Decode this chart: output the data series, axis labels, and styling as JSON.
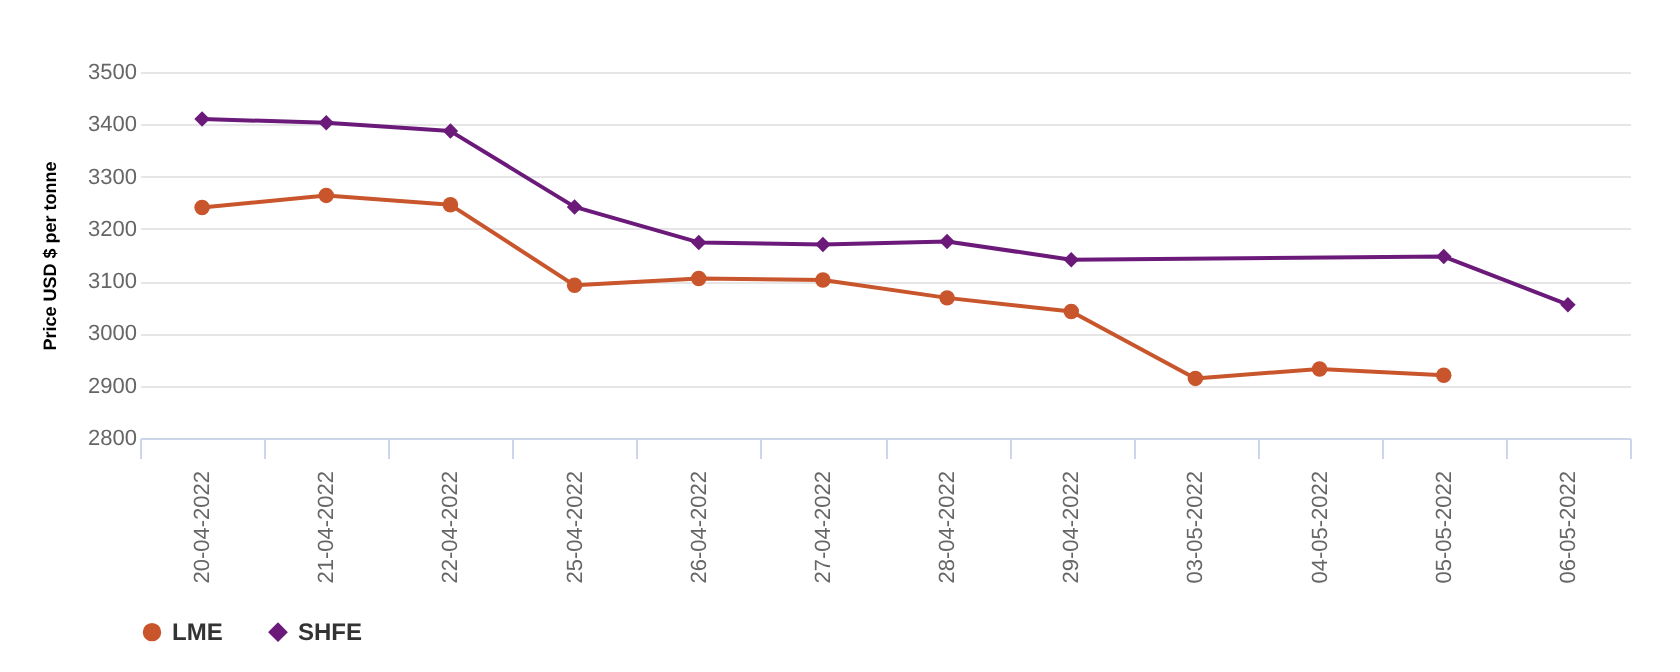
{
  "chart_data": {
    "type": "line",
    "ylabel": "Price USD $ per tonne",
    "categories": [
      "20-04-2022",
      "21-04-2022",
      "22-04-2022",
      "25-04-2022",
      "26-04-2022",
      "27-04-2022",
      "28-04-2022",
      "29-04-2022",
      "03-05-2022",
      "04-05-2022",
      "05-05-2022",
      "06-05-2022"
    ],
    "series": [
      {
        "name": "LME",
        "color": "#c8552b",
        "marker": "circle",
        "values": [
          3241,
          3264,
          3246,
          3092,
          3105,
          3102,
          3068,
          3042,
          2914,
          2932,
          2920,
          null
        ]
      },
      {
        "name": "SHFE",
        "color": "#6b1a7a",
        "marker": "diamond",
        "values": [
          3410,
          3403,
          3387,
          3242,
          3174,
          3170,
          3176,
          3141,
          null,
          null,
          3147,
          3055
        ]
      }
    ],
    "ylim": [
      2800,
      3500
    ],
    "yticks": [
      2800,
      2900,
      3000,
      3100,
      3200,
      3300,
      3400,
      3500
    ],
    "grid": "y",
    "legend": "bottom"
  }
}
